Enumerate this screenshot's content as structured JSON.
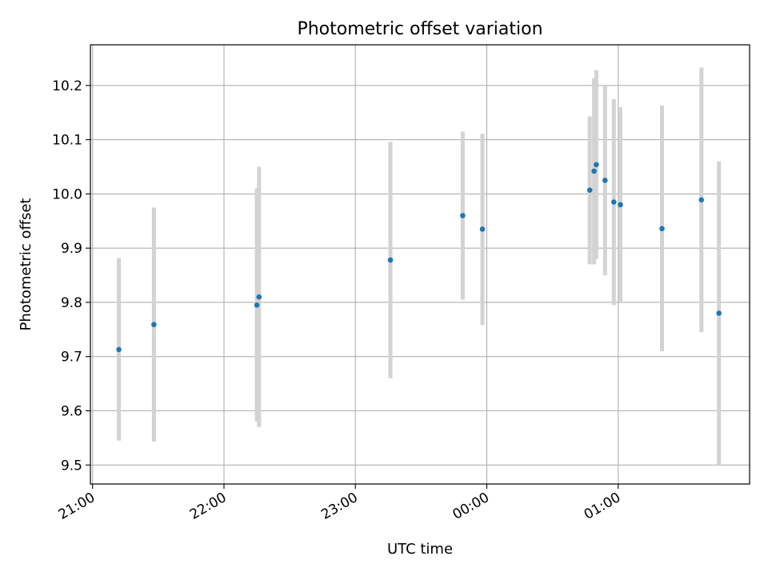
{
  "chart_data": {
    "type": "scatter",
    "title": "Photometric offset variation",
    "xlabel": "UTC time",
    "ylabel": "Photometric offset",
    "x_axis": "time",
    "xlim": [
      "20:59",
      "26:00"
    ],
    "ylim": [
      9.465,
      10.275
    ],
    "xticks": [
      "21:00",
      "22:00",
      "23:00",
      "00:00",
      "01:00"
    ],
    "yticks": [
      "9.5",
      "9.6",
      "9.7",
      "9.8",
      "9.9",
      "10.0",
      "10.1",
      "10.2"
    ],
    "grid": true,
    "colors": {
      "points": "#1f77b4",
      "errorbars": "#d3d3d3",
      "grid": "#b0b0b0"
    },
    "points": [
      {
        "time": "21:12",
        "y": 9.713,
        "ylow": 9.545,
        "yhigh": 9.882
      },
      {
        "time": "21:28",
        "y": 9.759,
        "ylow": 9.543,
        "yhigh": 9.975
      },
      {
        "time": "22:15",
        "y": 9.795,
        "ylow": 9.58,
        "yhigh": 10.01
      },
      {
        "time": "22:16",
        "y": 9.81,
        "ylow": 9.57,
        "yhigh": 10.05
      },
      {
        "time": "23:16",
        "y": 9.878,
        "ylow": 9.66,
        "yhigh": 10.096
      },
      {
        "time": "23:49",
        "y": 9.96,
        "ylow": 9.805,
        "yhigh": 10.115
      },
      {
        "time": "23:58",
        "y": 9.935,
        "ylow": 9.758,
        "yhigh": 10.111
      },
      {
        "time": "00:47",
        "y": 10.007,
        "ylow": 9.87,
        "yhigh": 10.143
      },
      {
        "time": "00:49",
        "y": 10.042,
        "ylow": 9.87,
        "yhigh": 10.213
      },
      {
        "time": "00:50",
        "y": 10.054,
        "ylow": 9.88,
        "yhigh": 10.228
      },
      {
        "time": "00:54",
        "y": 10.025,
        "ylow": 9.85,
        "yhigh": 10.2
      },
      {
        "time": "00:58",
        "y": 9.985,
        "ylow": 9.795,
        "yhigh": 10.175
      },
      {
        "time": "01:01",
        "y": 9.98,
        "ylow": 9.8,
        "yhigh": 10.16
      },
      {
        "time": "01:20",
        "y": 9.936,
        "ylow": 9.71,
        "yhigh": 10.163
      },
      {
        "time": "01:38",
        "y": 9.989,
        "ylow": 9.745,
        "yhigh": 10.233
      },
      {
        "time": "01:46",
        "y": 9.78,
        "ylow": 9.5,
        "yhigh": 10.06
      }
    ]
  }
}
